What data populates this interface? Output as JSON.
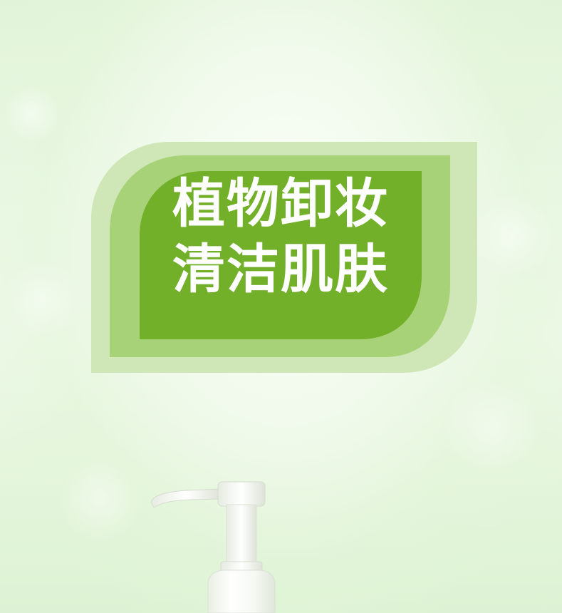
{
  "headline": {
    "line1": "植物卸妆",
    "line2": "清洁肌肤"
  },
  "colors": {
    "badge_outer": "#cfe7b6",
    "badge_middle": "#a8d278",
    "badge_inner": "#72b02a",
    "headline_text": "#ffffff",
    "background": "#eaf7e4"
  },
  "images": {
    "product": "pump-bottle"
  }
}
